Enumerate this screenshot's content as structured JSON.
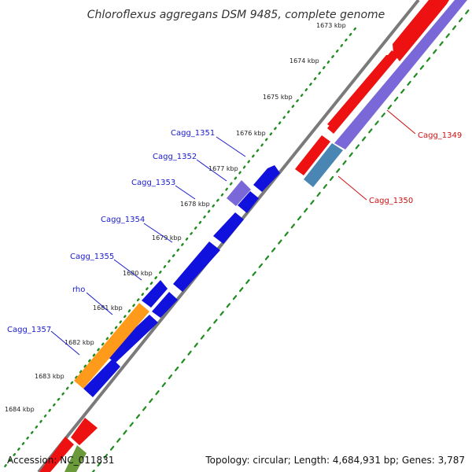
{
  "title": "Chloroflexus aggregans DSM 9485, complete genome",
  "footer": {
    "accession": "Accession: NC_011831",
    "summary": "Topology: circular; Length: 4,684,931 bp; Genes: 3,787"
  },
  "colors": {
    "backbone": "#808080",
    "tick": "#1e8c1e",
    "red_gene": "#ee1111",
    "blue_gene": "#1111dd",
    "purple_gene": "#7b68d8",
    "steel_gene": "#4a86b4",
    "orange_gene": "#ff9a1a",
    "green_gene": "#6a9a3a",
    "label_blue": "#1a1acc",
    "label_red": "#cc1111"
  },
  "kbp_labels": [
    "1673 kbp",
    "1674 kbp",
    "1675 kbp",
    "1676 kbp",
    "1677 kbp",
    "1678 kbp",
    "1679 kbp",
    "1680 kbp",
    "1681 kbp",
    "1682 kbp",
    "1683 kbp",
    "1684 kbp"
  ],
  "gene_labels": {
    "left": [
      "Cagg_1351",
      "Cagg_1352",
      "Cagg_1353",
      "Cagg_1354",
      "Cagg_1355",
      "rho",
      "Cagg_1357"
    ],
    "right": [
      "Cagg_1349",
      "Cagg_1350"
    ]
  }
}
